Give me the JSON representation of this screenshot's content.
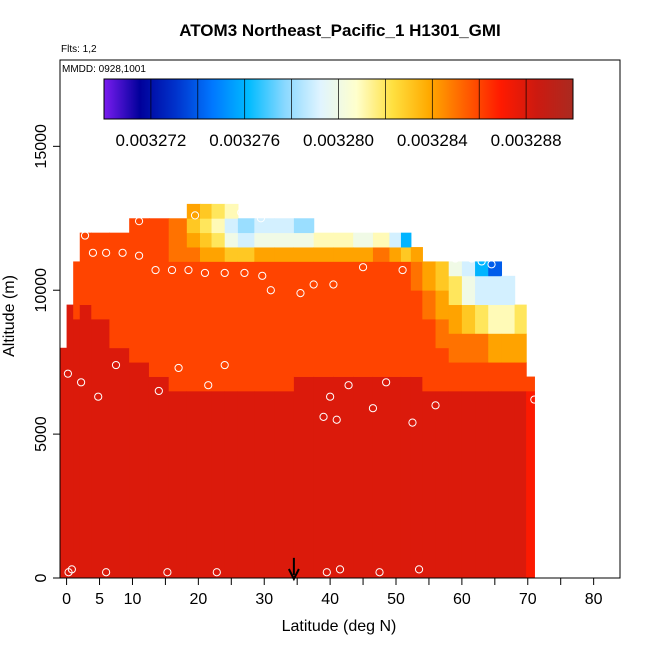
{
  "chart_data": {
    "type": "heatmap",
    "title": "ATOM3 Northeast_Pacific_1 H1301_GMI",
    "subtitle_flights": "Flts: 1,2",
    "subtitle_dates": "MMDD: 0928,1001",
    "xlabel": "Latitude (deg N)",
    "ylabel": "Altitude (m)",
    "xlim": [
      -1,
      84
    ],
    "ylim": [
      0,
      18000
    ],
    "x_ticks": [
      0,
      5,
      10,
      20,
      30,
      40,
      50,
      60,
      70,
      80
    ],
    "x_tick_labels": [
      "0",
      "5",
      "10",
      "20",
      "30",
      "40",
      "50",
      "60",
      "70",
      "80"
    ],
    "x_minor_ticks": [
      15,
      25,
      35,
      45,
      55,
      65,
      75,
      85
    ],
    "y_ticks": [
      0,
      5000,
      10000,
      15000
    ],
    "y_tick_labels": [
      "0",
      "5000",
      "10000",
      "15000"
    ],
    "colorbar": {
      "min": 0.00327,
      "max": 0.00329,
      "tick_values": [
        0.003272,
        0.003276,
        0.00328,
        0.003284,
        0.003288
      ],
      "tick_labels": [
        "0.003272",
        "0.003276",
        "0.003280",
        "0.003284",
        "0.003288"
      ],
      "colors": [
        "#7a1cf0",
        "#00009a",
        "#0033cc",
        "#0077ff",
        "#00bbff",
        "#88d8ff",
        "#e0f4ff",
        "#ffffcc",
        "#ffe040",
        "#ffaa00",
        "#ff6000",
        "#ff1a00",
        "#cc1a10",
        "#aa2a20"
      ]
    },
    "field_columns": [
      {
        "x": -0.5,
        "top": 8000,
        "bands": [
          [
            0,
            8000,
            0.003288
          ]
        ]
      },
      {
        "x": 0.5,
        "top": 9500,
        "bands": [
          [
            0,
            9500,
            0.003288
          ]
        ]
      },
      {
        "x": 1.5,
        "top": 11000,
        "bands": [
          [
            0,
            9000,
            0.003288
          ],
          [
            9000,
            11000,
            0.003286
          ]
        ]
      },
      {
        "x": 2.5,
        "top": 12000,
        "bands": [
          [
            0,
            9500,
            0.003288
          ],
          [
            9500,
            12000,
            0.003286
          ]
        ]
      },
      {
        "x": 5,
        "top": 12000,
        "bands": [
          [
            0,
            9000,
            0.003288
          ],
          [
            9000,
            12000,
            0.003286
          ]
        ]
      },
      {
        "x": 8,
        "top": 12000,
        "bands": [
          [
            0,
            8000,
            0.003288
          ],
          [
            8000,
            12000,
            0.003286
          ]
        ]
      },
      {
        "x": 11,
        "top": 12500,
        "bands": [
          [
            0,
            7500,
            0.003288
          ],
          [
            7500,
            12500,
            0.003286
          ]
        ]
      },
      {
        "x": 14,
        "top": 12500,
        "bands": [
          [
            0,
            7000,
            0.003288
          ],
          [
            7000,
            12500,
            0.003286
          ]
        ]
      },
      {
        "x": 17,
        "top": 12500,
        "bands": [
          [
            0,
            6500,
            0.003288
          ],
          [
            6500,
            11000,
            0.003286
          ],
          [
            11000,
            12500,
            0.003285
          ]
        ]
      },
      {
        "x": 19.5,
        "top": 13000,
        "bands": [
          [
            0,
            6500,
            0.003288
          ],
          [
            6500,
            11000,
            0.003286
          ],
          [
            11000,
            11500,
            0.003285
          ],
          [
            11500,
            12000,
            0.003284
          ],
          [
            12000,
            12500,
            0.003283
          ],
          [
            12500,
            13000,
            0.003284
          ]
        ]
      },
      {
        "x": 21,
        "top": 13000,
        "bands": [
          [
            0,
            6500,
            0.003288
          ],
          [
            6500,
            11000,
            0.003286
          ],
          [
            11000,
            11500,
            0.003284
          ],
          [
            11500,
            12000,
            0.003283
          ],
          [
            12000,
            12500,
            0.003282
          ],
          [
            12500,
            13000,
            0.003283
          ]
        ]
      },
      {
        "x": 23,
        "top": 13000,
        "bands": [
          [
            0,
            6500,
            0.003288
          ],
          [
            6500,
            11000,
            0.003286
          ],
          [
            11000,
            11500,
            0.003284
          ],
          [
            11500,
            12000,
            0.003282
          ],
          [
            12000,
            12500,
            0.003281
          ],
          [
            12500,
            13000,
            0.003282
          ]
        ]
      },
      {
        "x": 25,
        "top": 13000,
        "bands": [
          [
            0,
            6500,
            0.003288
          ],
          [
            6500,
            11000,
            0.003286
          ],
          [
            11000,
            11500,
            0.003283
          ],
          [
            11500,
            12000,
            0.00328
          ],
          [
            12000,
            12500,
            0.003279
          ],
          [
            12500,
            13000,
            0.003281
          ]
        ]
      },
      {
        "x": 27,
        "top": 12500,
        "bands": [
          [
            0,
            6500,
            0.003288
          ],
          [
            6500,
            11000,
            0.003286
          ],
          [
            11000,
            11500,
            0.003283
          ],
          [
            11500,
            12000,
            0.003279
          ],
          [
            12000,
            12500,
            0.003278
          ]
        ]
      },
      {
        "x": 30,
        "top": 12500,
        "bands": [
          [
            0,
            6500,
            0.003288
          ],
          [
            6500,
            11000,
            0.003286
          ],
          [
            11000,
            11500,
            0.003284
          ],
          [
            11500,
            12000,
            0.00328
          ],
          [
            12000,
            12500,
            0.003279
          ]
        ]
      },
      {
        "x": 33,
        "top": 12500,
        "bands": [
          [
            0,
            6500,
            0.003288
          ],
          [
            6500,
            11000,
            0.003286
          ],
          [
            11000,
            11500,
            0.003284
          ],
          [
            11500,
            12000,
            0.00328
          ],
          [
            12000,
            12500,
            0.003279
          ]
        ]
      },
      {
        "x": 36,
        "top": 12500,
        "bands": [
          [
            0,
            7000,
            0.003288
          ],
          [
            7000,
            11000,
            0.003286
          ],
          [
            11000,
            11500,
            0.003284
          ],
          [
            11500,
            12000,
            0.00328
          ],
          [
            12000,
            12500,
            0.003278
          ]
        ]
      },
      {
        "x": 39,
        "top": 12000,
        "bands": [
          [
            0,
            7000,
            0.003288
          ],
          [
            7000,
            11000,
            0.003286
          ],
          [
            11000,
            11500,
            0.003284
          ],
          [
            11500,
            12000,
            0.003281
          ]
        ]
      },
      {
        "x": 42,
        "top": 12000,
        "bands": [
          [
            0,
            7000,
            0.003288
          ],
          [
            7000,
            11000,
            0.003286
          ],
          [
            11000,
            11500,
            0.003284
          ],
          [
            11500,
            12000,
            0.003281
          ]
        ]
      },
      {
        "x": 45,
        "top": 12000,
        "bands": [
          [
            0,
            7000,
            0.003288
          ],
          [
            7000,
            11000,
            0.003286
          ],
          [
            11000,
            11500,
            0.003284
          ],
          [
            11500,
            12000,
            0.00328
          ]
        ]
      },
      {
        "x": 48,
        "top": 12000,
        "bands": [
          [
            0,
            7000,
            0.003288
          ],
          [
            7000,
            11000,
            0.003286
          ],
          [
            11000,
            11500,
            0.003285
          ],
          [
            11500,
            12000,
            0.003281
          ]
        ]
      },
      {
        "x": 50,
        "top": 12000,
        "bands": [
          [
            0,
            7000,
            0.003288
          ],
          [
            7000,
            11000,
            0.003286
          ],
          [
            11000,
            11500,
            0.003284
          ],
          [
            11500,
            12000,
            0.003279
          ]
        ]
      },
      {
        "x": 51.5,
        "top": 12000,
        "bands": [
          [
            0,
            7000,
            0.003288
          ],
          [
            7000,
            11000,
            0.003286
          ],
          [
            11000,
            11500,
            0.003283
          ],
          [
            11500,
            12000,
            0.003276
          ]
        ]
      },
      {
        "x": 53,
        "top": 11500,
        "bands": [
          [
            0,
            7000,
            0.003288
          ],
          [
            7000,
            10000,
            0.003286
          ],
          [
            10000,
            11000,
            0.003285
          ],
          [
            11000,
            11500,
            0.003284
          ]
        ]
      },
      {
        "x": 55,
        "top": 11000,
        "bands": [
          [
            0,
            6500,
            0.003288
          ],
          [
            6500,
            9000,
            0.003286
          ],
          [
            9000,
            10000,
            0.003285
          ],
          [
            10000,
            11000,
            0.003284
          ]
        ]
      },
      {
        "x": 57,
        "top": 11000,
        "bands": [
          [
            0,
            6500,
            0.003288
          ],
          [
            6500,
            8000,
            0.003286
          ],
          [
            8000,
            9000,
            0.003285
          ],
          [
            9000,
            10000,
            0.003284
          ],
          [
            10000,
            11000,
            0.003283
          ]
        ]
      },
      {
        "x": 59,
        "top": 11000,
        "bands": [
          [
            0,
            6500,
            0.003288
          ],
          [
            6500,
            7500,
            0.003286
          ],
          [
            7500,
            8500,
            0.003285
          ],
          [
            8500,
            9500,
            0.003284
          ],
          [
            9500,
            10500,
            0.003282
          ],
          [
            10500,
            11000,
            0.00328
          ]
        ]
      },
      {
        "x": 61,
        "top": 11000,
        "bands": [
          [
            0,
            6500,
            0.003288
          ],
          [
            6500,
            7500,
            0.003286
          ],
          [
            7500,
            8500,
            0.003285
          ],
          [
            8500,
            9500,
            0.003283
          ],
          [
            9500,
            10500,
            0.00328
          ],
          [
            10500,
            11000,
            0.003279
          ]
        ]
      },
      {
        "x": 63,
        "top": 11000,
        "bands": [
          [
            0,
            6500,
            0.003288
          ],
          [
            6500,
            7500,
            0.003286
          ],
          [
            7500,
            8500,
            0.003285
          ],
          [
            8500,
            9500,
            0.003282
          ],
          [
            9500,
            10500,
            0.003279
          ],
          [
            10500,
            11000,
            0.003276
          ]
        ]
      },
      {
        "x": 65,
        "top": 11000,
        "bands": [
          [
            0,
            6500,
            0.003288
          ],
          [
            6500,
            7500,
            0.003286
          ],
          [
            7500,
            8500,
            0.003284
          ],
          [
            8500,
            9500,
            0.003281
          ],
          [
            9500,
            10500,
            0.003279
          ],
          [
            10500,
            11000,
            0.003274
          ]
        ]
      },
      {
        "x": 67,
        "top": 10500,
        "bands": [
          [
            0,
            6500,
            0.003288
          ],
          [
            6500,
            7500,
            0.003286
          ],
          [
            7500,
            8500,
            0.003284
          ],
          [
            8500,
            9500,
            0.003281
          ],
          [
            9500,
            10500,
            0.003279
          ]
        ]
      },
      {
        "x": 69,
        "top": 9500,
        "bands": [
          [
            0,
            6500,
            0.003288
          ],
          [
            6500,
            7500,
            0.003286
          ],
          [
            7500,
            8500,
            0.003284
          ],
          [
            8500,
            9500,
            0.003282
          ]
        ]
      },
      {
        "x": 70.5,
        "top": 7000,
        "bands": [
          [
            0,
            6500,
            0.003287
          ],
          [
            6500,
            7000,
            0.003286
          ]
        ]
      }
    ],
    "series": [
      {
        "kind": "observation-points",
        "points": [
          [
            0.2,
            7100
          ],
          [
            0.3,
            200
          ],
          [
            0.8,
            300
          ],
          [
            2.2,
            6800
          ],
          [
            2.8,
            11900
          ],
          [
            4,
            11300
          ],
          [
            4.8,
            6300
          ],
          [
            6,
            11300
          ],
          [
            6,
            200
          ],
          [
            7.5,
            7400
          ],
          [
            8.5,
            11300
          ],
          [
            11,
            12400
          ],
          [
            11,
            11200
          ],
          [
            13.5,
            10700
          ],
          [
            14,
            6500
          ],
          [
            15.3,
            200
          ],
          [
            16,
            10700
          ],
          [
            17,
            7300
          ],
          [
            18.5,
            10700
          ],
          [
            19.5,
            12600
          ],
          [
            21,
            10600
          ],
          [
            21.5,
            6700
          ],
          [
            22.8,
            200
          ],
          [
            24,
            10600
          ],
          [
            24,
            7400
          ],
          [
            26.5,
            12700
          ],
          [
            27,
            10600
          ],
          [
            29.5,
            12500
          ],
          [
            29.7,
            10500
          ],
          [
            31,
            10000
          ],
          [
            35.5,
            9900
          ],
          [
            37.5,
            10200
          ],
          [
            39,
            5600
          ],
          [
            39.5,
            200
          ],
          [
            40,
            6300
          ],
          [
            40.5,
            10200
          ],
          [
            41,
            5500
          ],
          [
            41.5,
            300
          ],
          [
            42.8,
            6700
          ],
          [
            45,
            10800
          ],
          [
            46.5,
            5900
          ],
          [
            47.5,
            200
          ],
          [
            48.5,
            6800
          ],
          [
            51,
            10700
          ],
          [
            52.5,
            5400
          ],
          [
            53.5,
            300
          ],
          [
            56,
            6000
          ],
          [
            59,
            11100
          ],
          [
            61.5,
            11100
          ],
          [
            63,
            11000
          ],
          [
            64.5,
            10900
          ],
          [
            68,
            10900
          ],
          [
            71,
            6200
          ]
        ]
      }
    ],
    "arrow_marker": {
      "x": 34.5,
      "y_from": 700,
      "y_to": 0
    }
  }
}
